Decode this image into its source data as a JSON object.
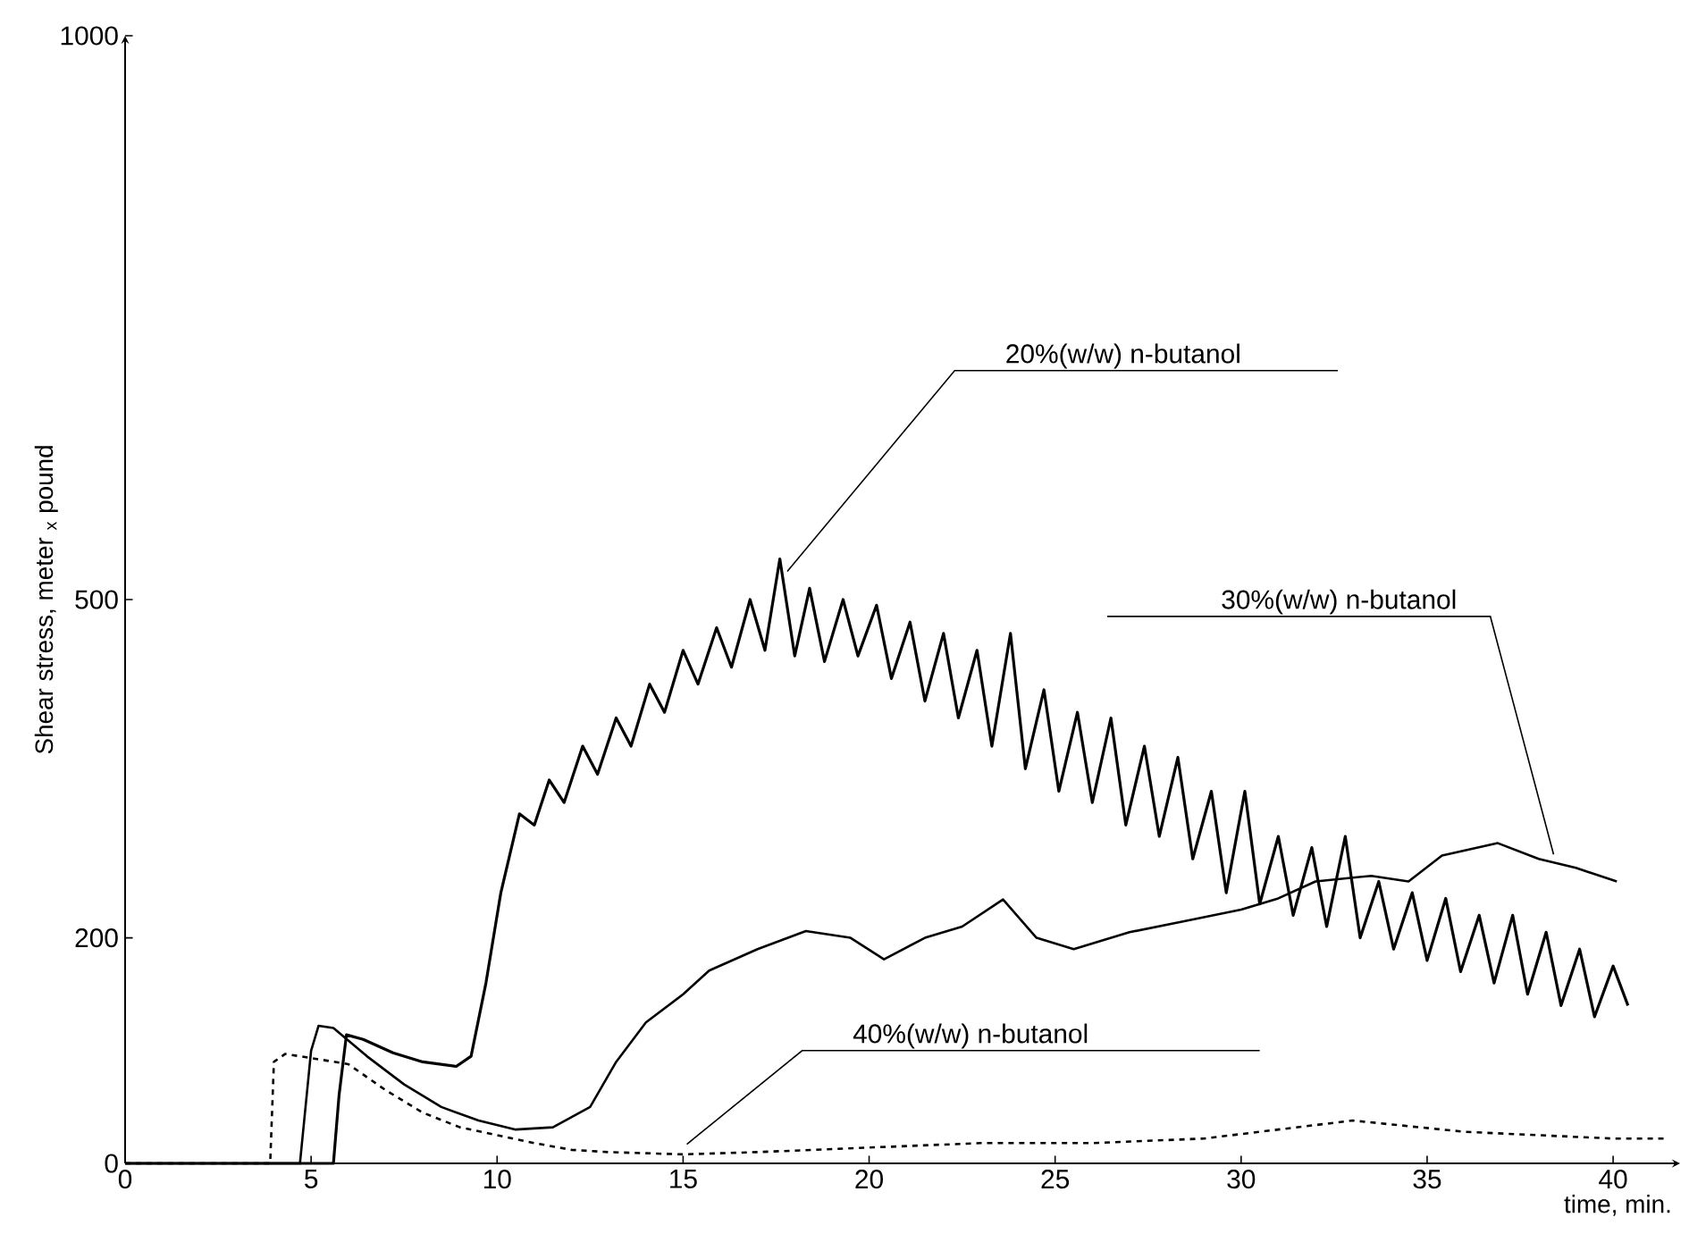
{
  "chart_data": {
    "type": "line",
    "xlabel": "time, min.",
    "ylabel": "Shear stress, meter $_{x}$ pound",
    "xlim": [
      0,
      41.8
    ],
    "ylim": [
      0,
      1000
    ],
    "xticks": [
      0,
      5,
      10,
      15,
      20,
      25,
      30,
      35,
      40
    ],
    "yticks": [
      0,
      200,
      500,
      1000
    ],
    "grid": false,
    "series": [
      {
        "color": "#000000",
        "line_style": "solid",
        "x": [
          0,
          5.6,
          5.75,
          5.95,
          6.4,
          7.2,
          8,
          8.9,
          9.3,
          9.7,
          10.1,
          10.6,
          11.0,
          11.4,
          11.8,
          12.3,
          12.7,
          13.2,
          13.6,
          14.1,
          14.5,
          15.0,
          15.4,
          15.9,
          16.3,
          16.8,
          17.2,
          17.6,
          18.0,
          18.4,
          18.8,
          19.3,
          19.7,
          20.2,
          20.6,
          21.1,
          21.5,
          22.0,
          22.4,
          22.9,
          23.3,
          23.8,
          24.2,
          24.7,
          25.1,
          25.6,
          26.0,
          26.5,
          26.9,
          27.4,
          27.8,
          28.3,
          28.7,
          29.2,
          29.6,
          30.1,
          30.5,
          31.0,
          31.4,
          31.9,
          32.3,
          32.8,
          33.2,
          33.7,
          34.1,
          34.6,
          35.0,
          35.5,
          35.9,
          36.4,
          36.8,
          37.3,
          37.7,
          38.2,
          38.6,
          39.1,
          39.5,
          40.0,
          40.4
        ],
        "values": [
          0,
          0,
          60,
          114,
          110,
          98,
          90,
          86,
          95,
          160,
          240,
          310,
          300,
          340,
          320,
          370,
          345,
          395,
          370,
          425,
          400,
          455,
          425,
          475,
          440,
          500,
          455,
          536,
          450,
          510,
          445,
          500,
          450,
          495,
          430,
          480,
          410,
          470,
          395,
          455,
          370,
          470,
          350,
          420,
          330,
          400,
          320,
          395,
          300,
          370,
          290,
          360,
          270,
          330,
          240,
          330,
          230,
          290,
          220,
          280,
          210,
          290,
          200,
          250,
          190,
          240,
          180,
          235,
          170,
          220,
          160,
          220,
          150,
          205,
          140,
          190,
          130,
          175,
          140
        ]
      },
      {
        "color": "#000000",
        "line_style": "solid",
        "x": [
          0,
          4.7,
          5.0,
          5.2,
          5.6,
          6.5,
          7.5,
          8.5,
          9.5,
          10.5,
          11.5,
          12.5,
          13.2,
          14,
          15,
          15.7,
          17,
          18.3,
          19.5,
          20.4,
          21.5,
          22.5,
          23.6,
          24.5,
          25.5,
          27,
          28.5,
          30,
          31,
          32,
          33.5,
          34.5,
          35.4,
          36.9,
          38,
          39,
          40.1
        ],
        "values": [
          0,
          0,
          100,
          122,
          120,
          95,
          70,
          50,
          38,
          30,
          32,
          50,
          90,
          125,
          150,
          171,
          190,
          206,
          200,
          181,
          200,
          210,
          234,
          200,
          190,
          205,
          215,
          225,
          235,
          250,
          255,
          250,
          273,
          284,
          270,
          262,
          250
        ]
      },
      {
        "color": "#000000",
        "line_style": "dashed",
        "x": [
          0,
          3.9,
          4.0,
          4.3,
          4.7,
          6,
          7,
          8,
          9,
          10,
          11,
          12,
          13,
          15,
          17,
          20,
          23,
          26,
          29,
          33,
          36,
          40,
          41.5
        ],
        "values": [
          0,
          0,
          90,
          97,
          95,
          88,
          65,
          45,
          32,
          25,
          18,
          12,
          10,
          8,
          10,
          14,
          18,
          18,
          22,
          38,
          28,
          22,
          22
        ]
      }
    ],
    "annotations": [
      {
        "text": "20%(w/w) n-butanol",
        "x": 17.8,
        "y": 525
      },
      {
        "text": "30%(w/w) n-butanol",
        "x": 38.4,
        "y": 274
      },
      {
        "text": "40%(w/w) n-butanol",
        "x": 15.1,
        "y": 17
      }
    ]
  }
}
